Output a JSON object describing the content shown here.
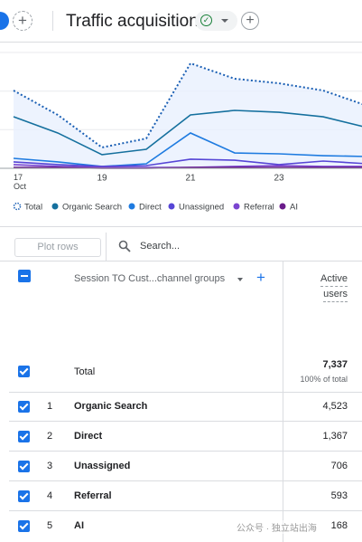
{
  "header": {
    "title": "Traffic acquisition"
  },
  "chart_data": {
    "type": "line",
    "categories": [
      "17 Oct",
      null,
      "19",
      null,
      "21",
      null,
      "23",
      null,
      null
    ],
    "ylim": [
      0,
      1200
    ],
    "series": [
      {
        "name": "Total",
        "color": "#1a5fb4",
        "dotted": true,
        "values": [
          806,
          553,
          216,
          309,
          1088,
          928,
          881,
          806,
          647
        ]
      },
      {
        "name": "Organic Search",
        "color": "#15709e",
        "values": [
          534,
          366,
          141,
          197,
          553,
          600,
          581,
          534,
          422
        ]
      },
      {
        "name": "Direct",
        "color": "#1e7be0",
        "values": [
          103,
          66,
          19,
          47,
          366,
          159,
          150,
          131,
          122
        ]
      },
      {
        "name": "Unassigned",
        "color": "#5646d6",
        "values": [
          66,
          38,
          19,
          28,
          94,
          84,
          38,
          75,
          47
        ]
      },
      {
        "name": "Referral",
        "color": "#7b45d0",
        "values": [
          38,
          19,
          9,
          9,
          9,
          19,
          28,
          19,
          19
        ]
      },
      {
        "name": "AI",
        "color": "#6a1b8a",
        "values": [
          9,
          9,
          0,
          0,
          9,
          9,
          9,
          9,
          9
        ]
      }
    ]
  },
  "toolbar": {
    "plot_rows": "Plot rows",
    "search": "Search..."
  },
  "table": {
    "dimension_header": "Session TO Cust...channel groups",
    "metric_header": [
      "Active",
      "users"
    ],
    "total": {
      "label": "Total",
      "value": "7,337",
      "share": "100% of total"
    },
    "rows": [
      {
        "rank": "1",
        "name": "Organic Search",
        "value": "4,523"
      },
      {
        "rank": "2",
        "name": "Direct",
        "value": "1,367"
      },
      {
        "rank": "3",
        "name": "Unassigned",
        "value": "706"
      },
      {
        "rank": "4",
        "name": "Referral",
        "value": "593"
      },
      {
        "rank": "5",
        "name": "AI",
        "value": "168"
      }
    ]
  },
  "watermark": "公众号 · 独立站出海"
}
